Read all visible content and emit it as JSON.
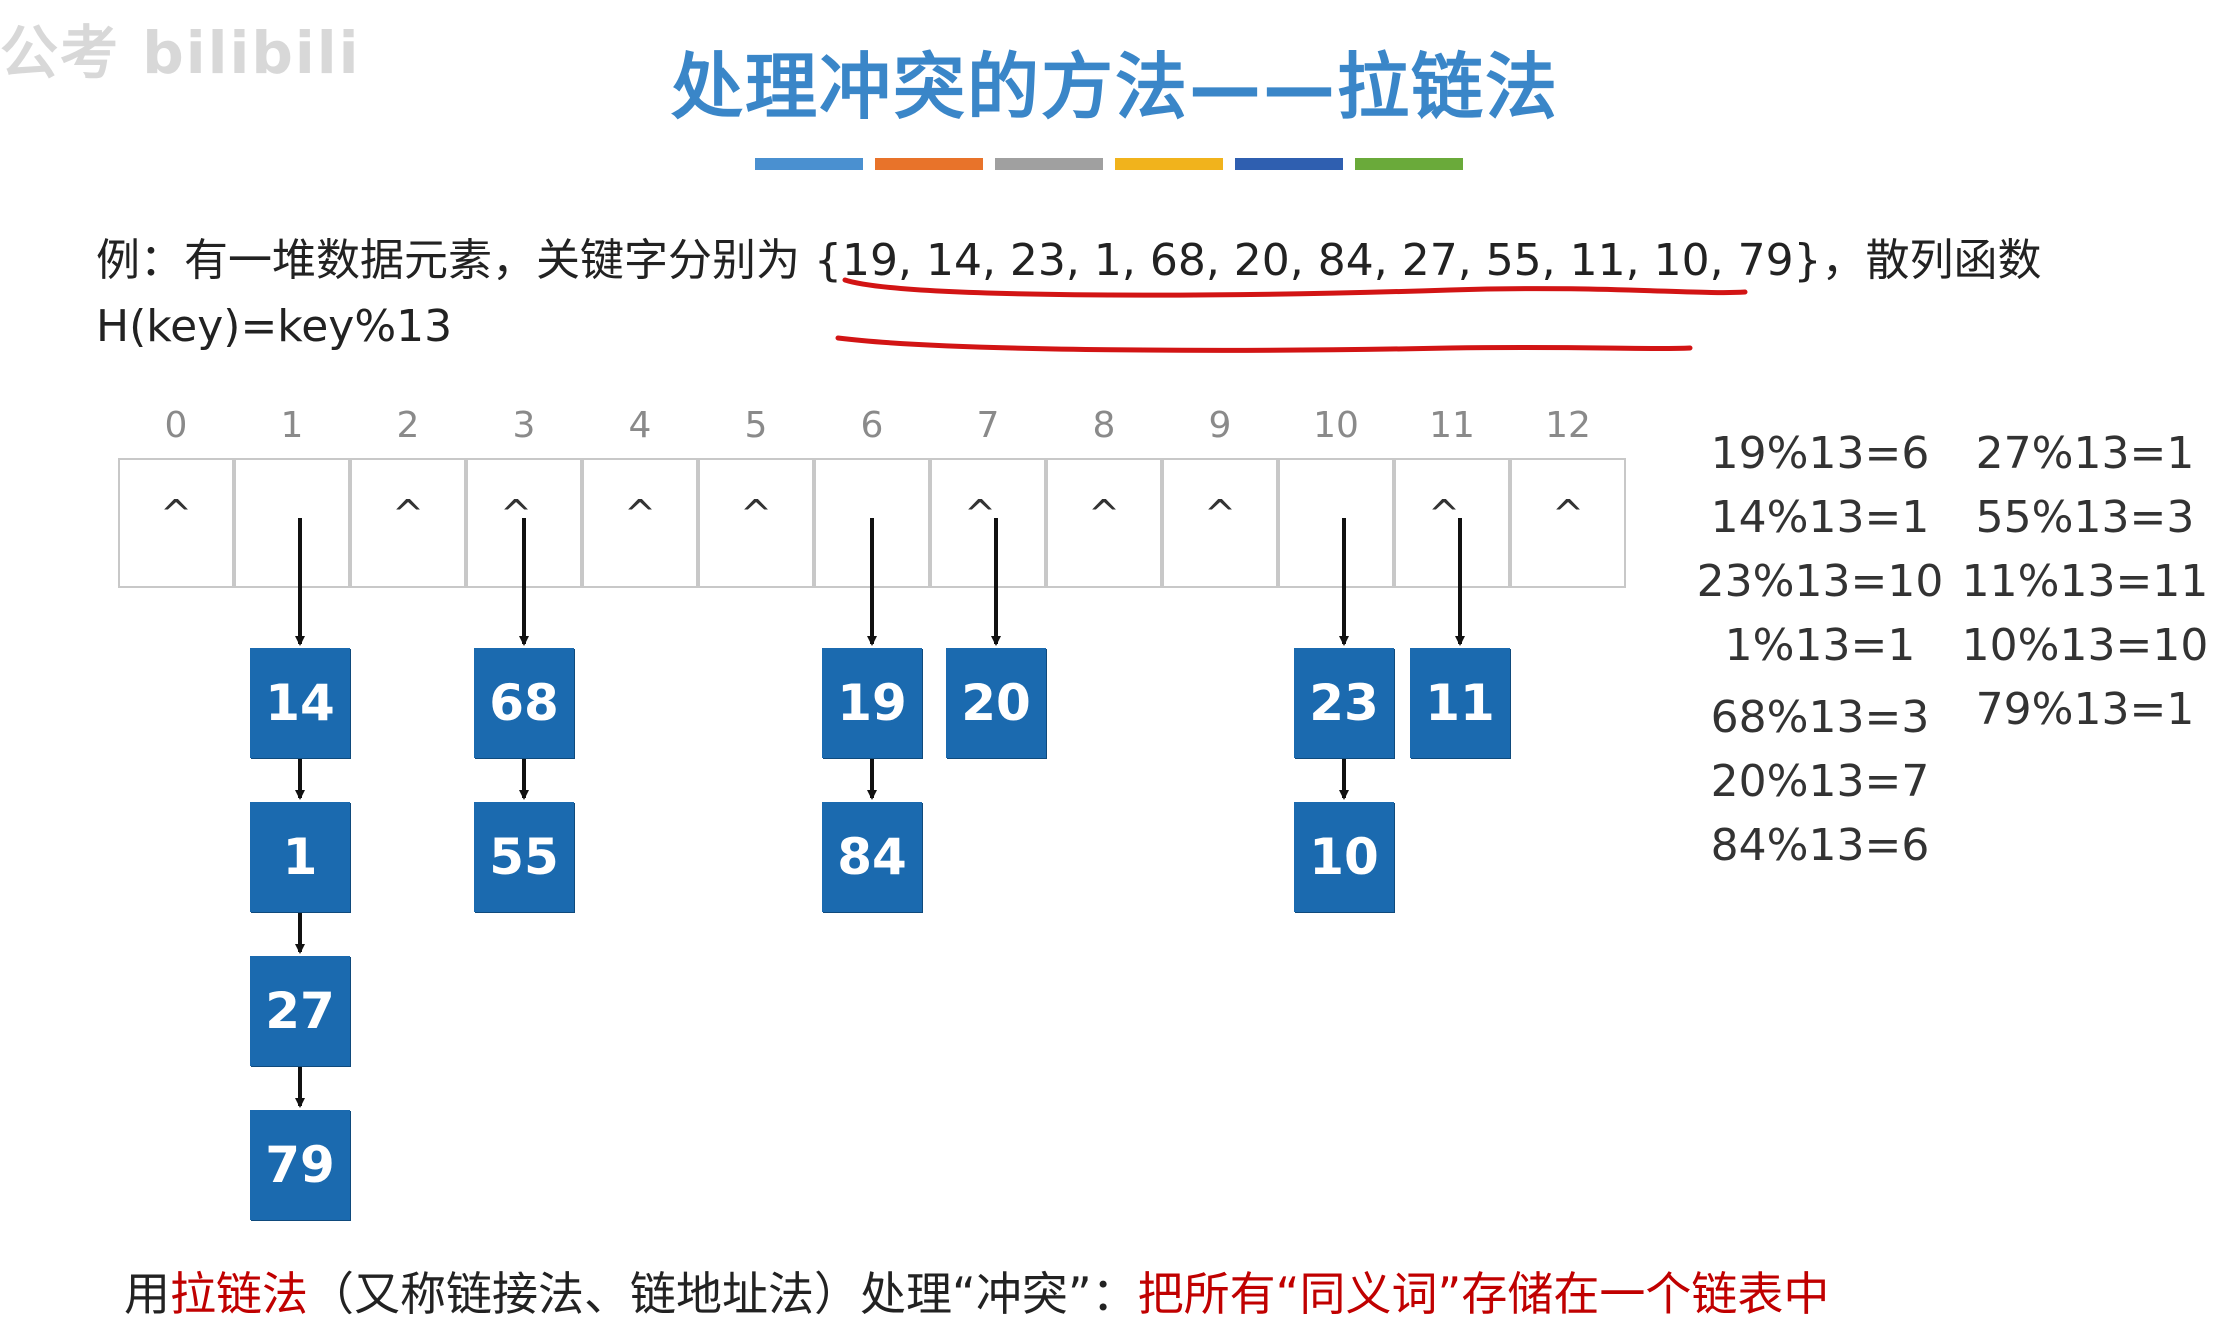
{
  "watermark": "公考 bilibili",
  "title": "处理冲突的方法——拉链法",
  "color_bars": [
    "#4a90d0",
    "#e8732a",
    "#a0a0a0",
    "#f1b31c",
    "#2f5fb0",
    "#6aaa3a"
  ],
  "problem": {
    "line1_prefix": "例：有一堆数据元素，关键字分别为",
    "keys": "{19, 14, 23, 1, 68, 20, 84, 27, 55, 11, 10, 79}",
    "line1_suffix": "，散列函数",
    "line2": "H(key)=key%13"
  },
  "table": {
    "indices": [
      "0",
      "1",
      "2",
      "3",
      "4",
      "5",
      "6",
      "7",
      "8",
      "9",
      "10",
      "11",
      "12"
    ],
    "empty_mark": "^",
    "empty_slots": [
      0,
      2,
      4,
      5,
      8,
      9,
      12
    ],
    "caret_with_arrow_slots": [
      3,
      7,
      11
    ]
  },
  "chains": [
    {
      "slot": 1,
      "values": [
        "14",
        "1",
        "27",
        "79"
      ]
    },
    {
      "slot": 3,
      "values": [
        "68",
        "55"
      ]
    },
    {
      "slot": 6,
      "values": [
        "19",
        "84"
      ]
    },
    {
      "slot": 7,
      "values": [
        "20"
      ]
    },
    {
      "slot": 10,
      "values": [
        "23",
        "10"
      ]
    },
    {
      "slot": 11,
      "values": [
        "11"
      ]
    }
  ],
  "calculations_left": [
    "19%13=6",
    "14%13=1",
    "23%13=10",
    "1%13=1",
    "68%13=3",
    "20%13=7",
    "84%13=6"
  ],
  "calculations_right": [
    "27%13=1",
    "55%13=3",
    "11%13=11",
    "10%13=10",
    "79%13=1"
  ],
  "footer": {
    "p1": "用",
    "p2": "拉链法",
    "p3": "（又称链接法、链地址法）处理“冲突”：",
    "p4": "把所有“同义词”存储在一个链表中"
  }
}
